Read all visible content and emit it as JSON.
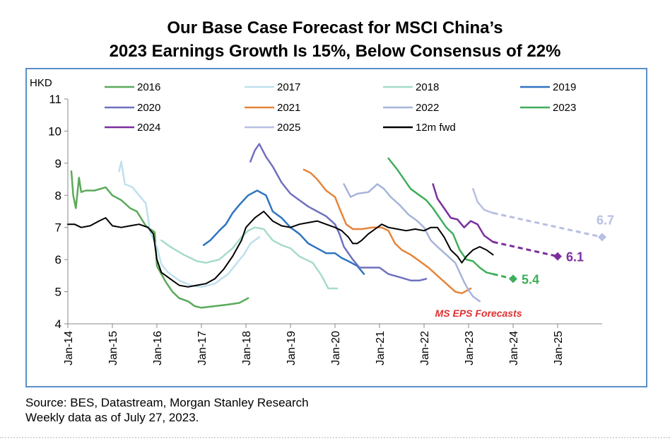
{
  "header": {
    "title_line1": "Our Base Case Forecast for MSCI China’s",
    "title_line2": "2023 Earnings Growth Is 15%, Below Consensus of 22%"
  },
  "footer": {
    "source": "Source: BES, Datastream, Morgan Stanley Research",
    "note": "Weekly data as of July 27, 2023."
  },
  "chart_data": {
    "type": "line",
    "ylabel": "HKD",
    "ylim": [
      4,
      11
    ],
    "yticks": [
      4,
      5,
      6,
      7,
      8,
      9,
      10,
      11
    ],
    "xlim": [
      2014.0,
      2026.0
    ],
    "xticks": [
      {
        "x": 2014,
        "label": "Jan-14"
      },
      {
        "x": 2015,
        "label": "Jan-15"
      },
      {
        "x": 2016,
        "label": "Jan-16"
      },
      {
        "x": 2017,
        "label": "Jan-17"
      },
      {
        "x": 2018,
        "label": "Jan-18"
      },
      {
        "x": 2019,
        "label": "Jan-19"
      },
      {
        "x": 2020,
        "label": "Jan-20"
      },
      {
        "x": 2021,
        "label": "Jan-21"
      },
      {
        "x": 2022,
        "label": "Jan-22"
      },
      {
        "x": 2023,
        "label": "Jan-23"
      },
      {
        "x": 2024,
        "label": "Jan-24"
      },
      {
        "x": 2025,
        "label": "Jan-25"
      }
    ],
    "grid": false,
    "legend_position": "top",
    "series": [
      {
        "name": "2016",
        "color": "#5aaa5a",
        "points": [
          [
            2014.08,
            8.75
          ],
          [
            2014.12,
            8.0
          ],
          [
            2014.18,
            7.6
          ],
          [
            2014.25,
            8.55
          ],
          [
            2014.3,
            8.1
          ],
          [
            2014.4,
            8.15
          ],
          [
            2014.6,
            8.15
          ],
          [
            2014.85,
            8.25
          ],
          [
            2015.0,
            8.0
          ],
          [
            2015.2,
            7.85
          ],
          [
            2015.4,
            7.6
          ],
          [
            2015.55,
            7.5
          ],
          [
            2015.75,
            7.05
          ],
          [
            2015.95,
            6.85
          ],
          [
            2016.0,
            5.8
          ],
          [
            2016.1,
            5.55
          ],
          [
            2016.2,
            5.3
          ],
          [
            2016.35,
            5.0
          ],
          [
            2016.5,
            4.8
          ],
          [
            2016.7,
            4.7
          ],
          [
            2016.85,
            4.55
          ],
          [
            2017.0,
            4.5
          ],
          [
            2017.3,
            4.55
          ],
          [
            2017.6,
            4.6
          ],
          [
            2017.85,
            4.65
          ],
          [
            2018.05,
            4.8
          ]
        ]
      },
      {
        "name": "2017",
        "color": "#bfe0ec",
        "points": [
          [
            2015.15,
            8.75
          ],
          [
            2015.2,
            9.05
          ],
          [
            2015.28,
            8.35
          ],
          [
            2015.45,
            8.25
          ],
          [
            2015.6,
            8.0
          ],
          [
            2015.75,
            7.75
          ],
          [
            2015.85,
            6.85
          ],
          [
            2016.0,
            6.4
          ],
          [
            2016.1,
            5.85
          ],
          [
            2016.25,
            5.6
          ],
          [
            2016.5,
            5.35
          ],
          [
            2016.75,
            5.2
          ],
          [
            2017.0,
            5.15
          ],
          [
            2017.3,
            5.25
          ],
          [
            2017.6,
            5.55
          ],
          [
            2017.8,
            5.9
          ],
          [
            2017.95,
            6.15
          ],
          [
            2018.1,
            6.5
          ],
          [
            2018.3,
            6.7
          ]
        ]
      },
      {
        "name": "2018",
        "color": "#a6dcc8",
        "points": [
          [
            2016.1,
            6.6
          ],
          [
            2016.3,
            6.4
          ],
          [
            2016.6,
            6.15
          ],
          [
            2016.9,
            5.95
          ],
          [
            2017.1,
            5.9
          ],
          [
            2017.4,
            6.0
          ],
          [
            2017.7,
            6.35
          ],
          [
            2017.9,
            6.7
          ],
          [
            2018.05,
            6.9
          ],
          [
            2018.2,
            7.0
          ],
          [
            2018.4,
            6.95
          ],
          [
            2018.6,
            6.6
          ],
          [
            2018.8,
            6.45
          ],
          [
            2019.0,
            6.35
          ],
          [
            2019.2,
            6.1
          ],
          [
            2019.5,
            5.9
          ],
          [
            2019.7,
            5.5
          ],
          [
            2019.85,
            5.1
          ],
          [
            2020.05,
            5.1
          ]
        ]
      },
      {
        "name": "2019",
        "color": "#2f75c0",
        "points": [
          [
            2017.05,
            6.45
          ],
          [
            2017.2,
            6.6
          ],
          [
            2017.4,
            6.9
          ],
          [
            2017.55,
            7.1
          ],
          [
            2017.7,
            7.45
          ],
          [
            2017.85,
            7.7
          ],
          [
            2018.05,
            8.0
          ],
          [
            2018.25,
            8.15
          ],
          [
            2018.45,
            8.0
          ],
          [
            2018.6,
            7.5
          ],
          [
            2018.8,
            7.3
          ],
          [
            2019.0,
            7.0
          ],
          [
            2019.2,
            6.8
          ],
          [
            2019.4,
            6.5
          ],
          [
            2019.6,
            6.35
          ],
          [
            2019.8,
            6.2
          ],
          [
            2020.0,
            6.2
          ],
          [
            2020.15,
            6.05
          ],
          [
            2020.3,
            5.95
          ],
          [
            2020.5,
            5.8
          ],
          [
            2020.65,
            5.55
          ]
        ]
      },
      {
        "name": "2020",
        "color": "#7070c0",
        "points": [
          [
            2018.1,
            9.05
          ],
          [
            2018.2,
            9.4
          ],
          [
            2018.3,
            9.6
          ],
          [
            2018.45,
            9.2
          ],
          [
            2018.6,
            8.9
          ],
          [
            2018.8,
            8.4
          ],
          [
            2019.0,
            8.05
          ],
          [
            2019.2,
            7.85
          ],
          [
            2019.4,
            7.65
          ],
          [
            2019.6,
            7.5
          ],
          [
            2019.8,
            7.35
          ],
          [
            2020.0,
            7.1
          ],
          [
            2020.1,
            6.8
          ],
          [
            2020.2,
            6.4
          ],
          [
            2020.4,
            6.0
          ],
          [
            2020.55,
            5.75
          ],
          [
            2020.7,
            5.75
          ],
          [
            2021.0,
            5.75
          ],
          [
            2021.2,
            5.55
          ],
          [
            2021.45,
            5.45
          ],
          [
            2021.7,
            5.35
          ],
          [
            2021.9,
            5.35
          ],
          [
            2022.05,
            5.4
          ]
        ]
      },
      {
        "name": "2021",
        "color": "#e5853a",
        "points": [
          [
            2019.3,
            8.8
          ],
          [
            2019.45,
            8.7
          ],
          [
            2019.6,
            8.5
          ],
          [
            2019.8,
            8.15
          ],
          [
            2020.0,
            7.95
          ],
          [
            2020.1,
            7.6
          ],
          [
            2020.25,
            7.1
          ],
          [
            2020.4,
            6.95
          ],
          [
            2020.6,
            6.95
          ],
          [
            2020.85,
            7.0
          ],
          [
            2021.05,
            7.0
          ],
          [
            2021.2,
            6.9
          ],
          [
            2021.35,
            6.5
          ],
          [
            2021.5,
            6.3
          ],
          [
            2021.7,
            6.15
          ],
          [
            2021.9,
            5.95
          ],
          [
            2022.1,
            5.75
          ],
          [
            2022.3,
            5.5
          ],
          [
            2022.5,
            5.25
          ],
          [
            2022.7,
            5.0
          ],
          [
            2022.85,
            4.95
          ],
          [
            2023.05,
            5.1
          ]
        ]
      },
      {
        "name": "2022",
        "color": "#a6b4da",
        "points": [
          [
            2020.2,
            8.35
          ],
          [
            2020.35,
            7.95
          ],
          [
            2020.5,
            8.05
          ],
          [
            2020.75,
            8.1
          ],
          [
            2020.95,
            8.35
          ],
          [
            2021.1,
            8.2
          ],
          [
            2021.25,
            7.95
          ],
          [
            2021.45,
            7.7
          ],
          [
            2021.65,
            7.4
          ],
          [
            2021.85,
            7.2
          ],
          [
            2022.0,
            7.0
          ],
          [
            2022.15,
            6.6
          ],
          [
            2022.3,
            6.4
          ],
          [
            2022.5,
            6.15
          ],
          [
            2022.7,
            5.9
          ],
          [
            2022.8,
            5.6
          ],
          [
            2022.9,
            5.3
          ],
          [
            2023.0,
            5.05
          ],
          [
            2023.1,
            4.85
          ],
          [
            2023.25,
            4.7
          ]
        ]
      },
      {
        "name": "2023",
        "color": "#3fae5a",
        "points": [
          [
            2021.2,
            9.15
          ],
          [
            2021.4,
            8.8
          ],
          [
            2021.55,
            8.5
          ],
          [
            2021.7,
            8.2
          ],
          [
            2021.9,
            8.0
          ],
          [
            2022.05,
            7.85
          ],
          [
            2022.2,
            7.6
          ],
          [
            2022.35,
            7.3
          ],
          [
            2022.5,
            7.0
          ],
          [
            2022.65,
            6.8
          ],
          [
            2022.8,
            6.3
          ],
          [
            2022.95,
            6.0
          ],
          [
            2023.1,
            5.95
          ],
          [
            2023.25,
            5.75
          ],
          [
            2023.4,
            5.6
          ],
          [
            2023.55,
            5.55
          ]
        ]
      },
      {
        "name": "2024",
        "color": "#7b2f9e",
        "points": [
          [
            2022.2,
            8.35
          ],
          [
            2022.3,
            7.9
          ],
          [
            2022.45,
            7.6
          ],
          [
            2022.6,
            7.3
          ],
          [
            2022.75,
            7.25
          ],
          [
            2022.9,
            7.0
          ],
          [
            2023.05,
            7.2
          ],
          [
            2023.2,
            7.1
          ],
          [
            2023.35,
            6.75
          ],
          [
            2023.55,
            6.55
          ]
        ]
      },
      {
        "name": "2025",
        "color": "#b7bfe3",
        "points": [
          [
            2023.1,
            8.2
          ],
          [
            2023.2,
            7.8
          ],
          [
            2023.35,
            7.55
          ],
          [
            2023.55,
            7.45
          ]
        ]
      },
      {
        "name": "12m fwd",
        "color": "#000000",
        "points": [
          [
            2014.0,
            7.1
          ],
          [
            2014.15,
            7.1
          ],
          [
            2014.3,
            7.0
          ],
          [
            2014.5,
            7.05
          ],
          [
            2014.7,
            7.2
          ],
          [
            2014.85,
            7.3
          ],
          [
            2015.0,
            7.05
          ],
          [
            2015.2,
            7.0
          ],
          [
            2015.4,
            7.05
          ],
          [
            2015.6,
            7.1
          ],
          [
            2015.8,
            7.0
          ],
          [
            2015.92,
            6.8
          ],
          [
            2016.0,
            6.0
          ],
          [
            2016.1,
            5.6
          ],
          [
            2016.3,
            5.4
          ],
          [
            2016.5,
            5.2
          ],
          [
            2016.7,
            5.15
          ],
          [
            2016.9,
            5.2
          ],
          [
            2017.1,
            5.25
          ],
          [
            2017.3,
            5.4
          ],
          [
            2017.5,
            5.7
          ],
          [
            2017.7,
            6.1
          ],
          [
            2017.9,
            6.6
          ],
          [
            2018.0,
            7.0
          ],
          [
            2018.2,
            7.3
          ],
          [
            2018.4,
            7.5
          ],
          [
            2018.6,
            7.2
          ],
          [
            2018.8,
            7.05
          ],
          [
            2019.0,
            7.0
          ],
          [
            2019.2,
            7.1
          ],
          [
            2019.4,
            7.15
          ],
          [
            2019.6,
            7.2
          ],
          [
            2019.8,
            7.1
          ],
          [
            2020.0,
            7.0
          ],
          [
            2020.15,
            6.9
          ],
          [
            2020.3,
            6.7
          ],
          [
            2020.4,
            6.5
          ],
          [
            2020.5,
            6.5
          ],
          [
            2020.6,
            6.6
          ],
          [
            2020.75,
            6.8
          ],
          [
            2020.9,
            6.95
          ],
          [
            2021.05,
            7.1
          ],
          [
            2021.2,
            7.0
          ],
          [
            2021.4,
            6.95
          ],
          [
            2021.6,
            6.9
          ],
          [
            2021.8,
            6.95
          ],
          [
            2022.0,
            6.9
          ],
          [
            2022.15,
            7.0
          ],
          [
            2022.3,
            7.0
          ],
          [
            2022.45,
            6.7
          ],
          [
            2022.6,
            6.3
          ],
          [
            2022.75,
            6.1
          ],
          [
            2022.85,
            5.9
          ],
          [
            2022.95,
            6.1
          ],
          [
            2023.1,
            6.3
          ],
          [
            2023.25,
            6.4
          ],
          [
            2023.4,
            6.3
          ],
          [
            2023.55,
            6.15
          ]
        ]
      }
    ],
    "forecasts": [
      {
        "series": "2023",
        "color": "#3fae5a",
        "from": [
          2023.55,
          5.55
        ],
        "to": [
          2024.0,
          5.4
        ],
        "label": "5.4"
      },
      {
        "series": "2024",
        "color": "#7b2f9e",
        "from": [
          2023.55,
          6.55
        ],
        "to": [
          2025.0,
          6.1
        ],
        "label": "6.1"
      },
      {
        "series": "2025",
        "color": "#b7bfe3",
        "from": [
          2023.55,
          7.45
        ],
        "to": [
          2026.0,
          6.7
        ],
        "label": "6.7"
      }
    ],
    "annotation": {
      "text": "MS EPS Forecasts",
      "color": "#e03030"
    }
  }
}
